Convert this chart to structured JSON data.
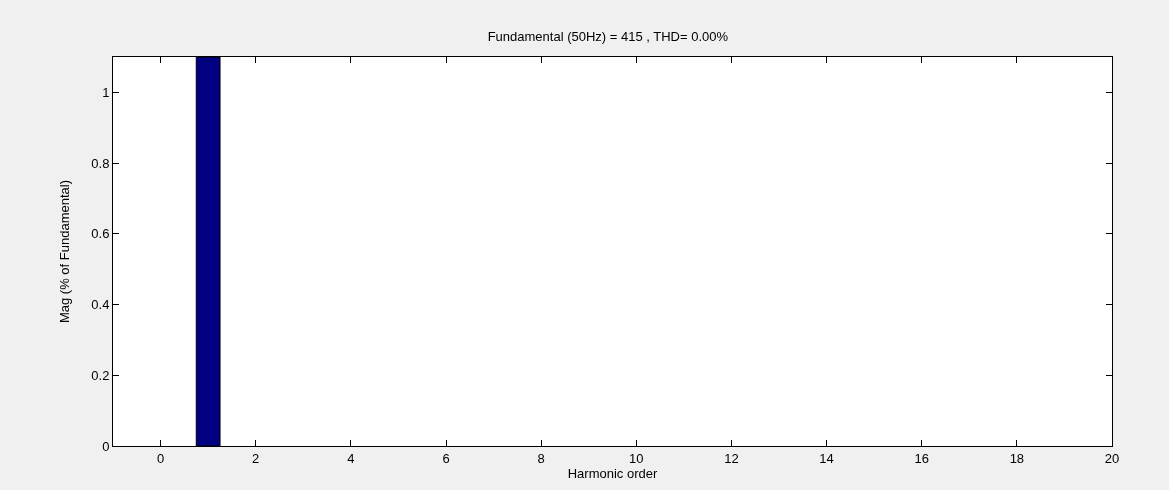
{
  "chart_data": {
    "type": "bar",
    "title": "Fundamental (50Hz) = 415 , THD= 0.00%",
    "xlabel": "Harmonic order",
    "ylabel": "Mag (% of Fundamental)",
    "x": [
      1
    ],
    "values": [
      1.1
    ],
    "color": "#000080",
    "xlim": [
      -1,
      20
    ],
    "xticks": [
      0,
      2,
      4,
      6,
      8,
      10,
      12,
      14,
      16,
      18,
      20
    ],
    "ylim": [
      0,
      1.1
    ],
    "yticks": [
      0,
      0.2,
      0.4,
      0.6,
      0.8,
      1
    ],
    "grid": false
  }
}
